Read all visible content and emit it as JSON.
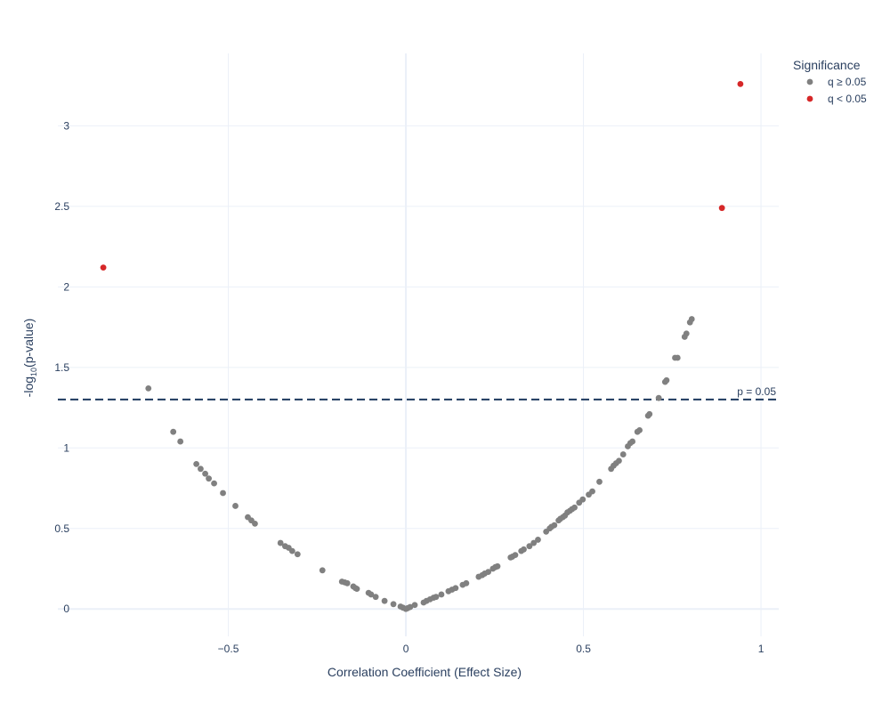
{
  "chart_data": {
    "type": "scatter",
    "xlabel": "Correlation Coefficient (Effect Size)",
    "ylabel_parts": [
      "-log",
      "10",
      "(p-value)"
    ],
    "xlim": [
      -0.98,
      1.05
    ],
    "ylim": [
      -0.17,
      3.45
    ],
    "x_ticks": [
      {
        "value": -0.5,
        "label": "−0.5"
      },
      {
        "value": 0,
        "label": "0"
      },
      {
        "value": 0.5,
        "label": "0.5"
      },
      {
        "value": 1,
        "label": "1"
      }
    ],
    "y_ticks": [
      {
        "value": 0,
        "label": "0"
      },
      {
        "value": 0.5,
        "label": "0.5"
      },
      {
        "value": 1,
        "label": "1"
      },
      {
        "value": 1.5,
        "label": "1.5"
      },
      {
        "value": 2,
        "label": "2"
      },
      {
        "value": 2.5,
        "label": "2.5"
      },
      {
        "value": 3,
        "label": "3"
      }
    ],
    "grid": true,
    "threshold": {
      "y": 1.301,
      "label": "p = 0.05",
      "color": "#1f3a5f",
      "style": "dashed"
    },
    "legend": {
      "title": "Significance",
      "placement": "top-right"
    },
    "series": [
      {
        "name": "q ≥ 0.05",
        "color": "#808080",
        "points": [
          [
            -0.725,
            1.37
          ],
          [
            -0.655,
            1.1
          ],
          [
            -0.635,
            1.04
          ],
          [
            -0.59,
            0.9
          ],
          [
            -0.578,
            0.87
          ],
          [
            -0.565,
            0.84
          ],
          [
            -0.555,
            0.81
          ],
          [
            -0.54,
            0.78
          ],
          [
            -0.515,
            0.72
          ],
          [
            -0.48,
            0.64
          ],
          [
            -0.445,
            0.57
          ],
          [
            -0.435,
            0.55
          ],
          [
            -0.425,
            0.53
          ],
          [
            -0.353,
            0.41
          ],
          [
            -0.34,
            0.39
          ],
          [
            -0.33,
            0.38
          ],
          [
            -0.32,
            0.36
          ],
          [
            -0.305,
            0.34
          ],
          [
            -0.235,
            0.24
          ],
          [
            -0.18,
            0.17
          ],
          [
            -0.172,
            0.165
          ],
          [
            -0.165,
            0.16
          ],
          [
            -0.148,
            0.14
          ],
          [
            -0.142,
            0.13
          ],
          [
            -0.138,
            0.125
          ],
          [
            -0.105,
            0.1
          ],
          [
            -0.098,
            0.09
          ],
          [
            -0.085,
            0.075
          ],
          [
            -0.06,
            0.05
          ],
          [
            -0.035,
            0.03
          ],
          [
            -0.015,
            0.015
          ],
          [
            -0.008,
            0.008
          ],
          [
            0.0,
            0.0
          ],
          [
            0.005,
            0.005
          ],
          [
            0.012,
            0.012
          ],
          [
            0.025,
            0.025
          ],
          [
            0.05,
            0.04
          ],
          [
            0.058,
            0.05
          ],
          [
            0.068,
            0.06
          ],
          [
            0.078,
            0.07
          ],
          [
            0.085,
            0.075
          ],
          [
            0.1,
            0.09
          ],
          [
            0.12,
            0.11
          ],
          [
            0.13,
            0.12
          ],
          [
            0.14,
            0.13
          ],
          [
            0.16,
            0.15
          ],
          [
            0.17,
            0.16
          ],
          [
            0.205,
            0.2
          ],
          [
            0.215,
            0.21
          ],
          [
            0.222,
            0.22
          ],
          [
            0.232,
            0.23
          ],
          [
            0.245,
            0.25
          ],
          [
            0.252,
            0.26
          ],
          [
            0.258,
            0.265
          ],
          [
            0.295,
            0.32
          ],
          [
            0.3,
            0.325
          ],
          [
            0.308,
            0.335
          ],
          [
            0.325,
            0.36
          ],
          [
            0.332,
            0.37
          ],
          [
            0.348,
            0.39
          ],
          [
            0.36,
            0.41
          ],
          [
            0.372,
            0.43
          ],
          [
            0.395,
            0.48
          ],
          [
            0.405,
            0.5
          ],
          [
            0.41,
            0.51
          ],
          [
            0.418,
            0.52
          ],
          [
            0.43,
            0.55
          ],
          [
            0.435,
            0.56
          ],
          [
            0.442,
            0.57
          ],
          [
            0.448,
            0.58
          ],
          [
            0.455,
            0.6
          ],
          [
            0.462,
            0.61
          ],
          [
            0.468,
            0.62
          ],
          [
            0.475,
            0.63
          ],
          [
            0.488,
            0.66
          ],
          [
            0.498,
            0.68
          ],
          [
            0.515,
            0.71
          ],
          [
            0.525,
            0.73
          ],
          [
            0.545,
            0.79
          ],
          [
            0.578,
            0.87
          ],
          [
            0.585,
            0.89
          ],
          [
            0.592,
            0.905
          ],
          [
            0.6,
            0.92
          ],
          [
            0.612,
            0.96
          ],
          [
            0.625,
            1.01
          ],
          [
            0.632,
            1.03
          ],
          [
            0.638,
            1.04
          ],
          [
            0.652,
            1.1
          ],
          [
            0.658,
            1.11
          ],
          [
            0.682,
            1.2
          ],
          [
            0.686,
            1.21
          ],
          [
            0.712,
            1.31
          ],
          [
            0.73,
            1.41
          ],
          [
            0.734,
            1.42
          ],
          [
            0.758,
            1.56
          ],
          [
            0.765,
            1.56
          ],
          [
            0.785,
            1.69
          ],
          [
            0.79,
            1.71
          ],
          [
            0.8,
            1.78
          ],
          [
            0.805,
            1.8
          ]
        ]
      },
      {
        "name": "q < 0.05",
        "color": "#d62728",
        "points": [
          [
            -0.852,
            2.12
          ],
          [
            0.89,
            2.49
          ],
          [
            0.942,
            3.26
          ]
        ]
      }
    ]
  }
}
